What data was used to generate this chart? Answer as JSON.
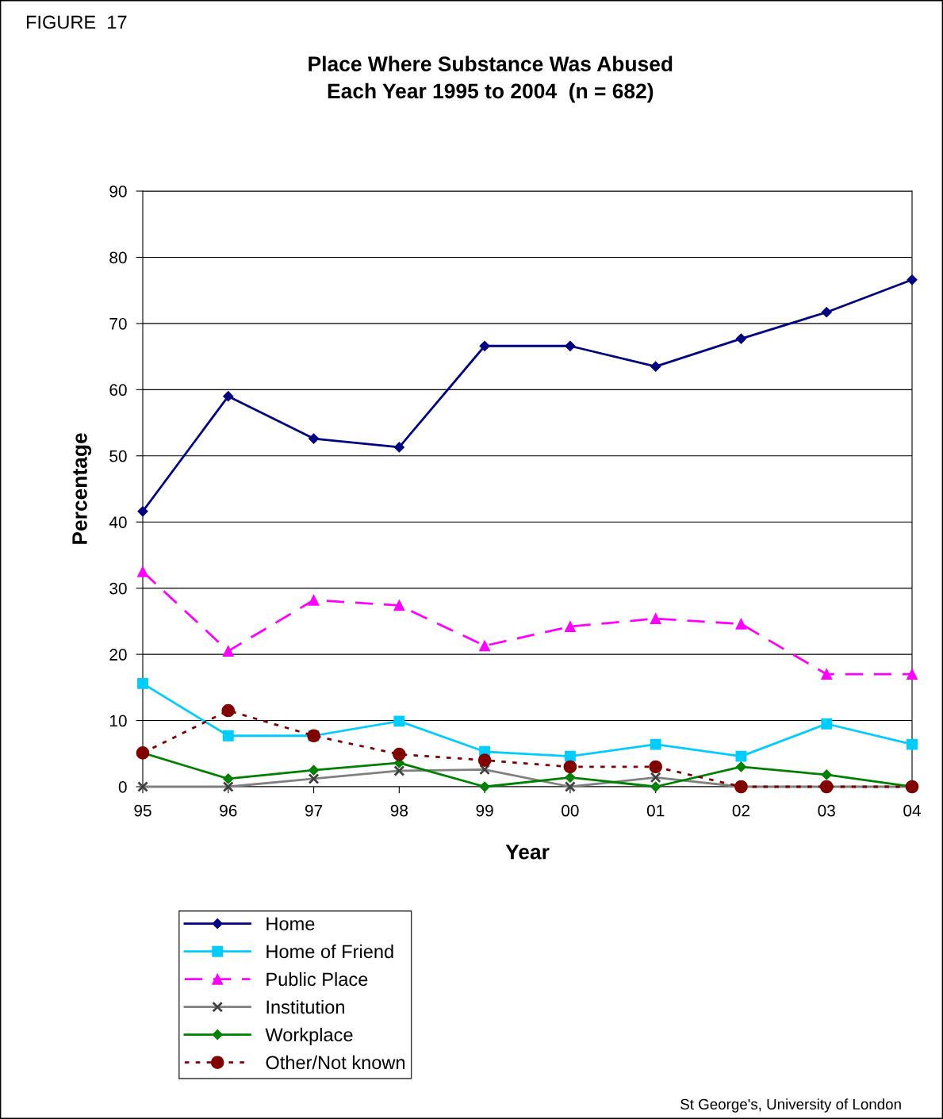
{
  "chart_data": {
    "type": "line",
    "title": "Place Where Substance Was Abused\nEach Year 1995 to 2004  (n = 682)",
    "xlabel": "Year",
    "ylabel": "Percentage",
    "annotations": [
      "FIGURE  17",
      "St George's, University of London"
    ],
    "categories": [
      "95",
      "96",
      "97",
      "98",
      "99",
      "00",
      "01",
      "02",
      "03",
      "04"
    ],
    "ylim": [
      0,
      90
    ],
    "yticks": [
      0,
      10,
      20,
      30,
      40,
      50,
      60,
      70,
      80,
      90
    ],
    "grid": "y",
    "legend": "bottom left",
    "series": [
      {
        "name": "Home",
        "color": "#000080",
        "marker": "diamond",
        "line_style": "solid",
        "values": [
          41.6,
          59.0,
          52.6,
          51.3,
          66.6,
          66.6,
          63.5,
          67.7,
          71.7,
          76.6
        ]
      },
      {
        "name": "Home of Friend",
        "color": "#00ccff",
        "marker": "square",
        "line_style": "solid",
        "values": [
          15.6,
          7.7,
          7.7,
          9.9,
          5.3,
          4.6,
          6.4,
          4.6,
          9.5,
          6.4
        ]
      },
      {
        "name": "Public Place",
        "color": "#ff00ff",
        "marker": "triangle",
        "line_style": "dashed",
        "values": [
          32.5,
          20.5,
          28.2,
          27.4,
          21.3,
          24.2,
          25.4,
          24.6,
          17.0,
          17.0
        ]
      },
      {
        "name": "Institution",
        "color": "#808080",
        "marker": "cross",
        "line_style": "solid",
        "values": [
          0,
          0,
          1.2,
          2.4,
          2.6,
          0,
          1.4,
          0,
          0,
          0
        ]
      },
      {
        "name": "Workplace",
        "color": "#008000",
        "marker": "diamond",
        "line_style": "solid",
        "values": [
          5.1,
          1.2,
          2.5,
          3.6,
          0,
          1.4,
          0,
          3.0,
          1.8,
          0
        ]
      },
      {
        "name": "Other/Not known",
        "color": "#800000",
        "marker": "circle",
        "line_style": "dotted",
        "values": [
          5.1,
          11.5,
          7.7,
          4.9,
          4.0,
          3.0,
          3.0,
          0,
          0,
          0
        ]
      }
    ]
  }
}
